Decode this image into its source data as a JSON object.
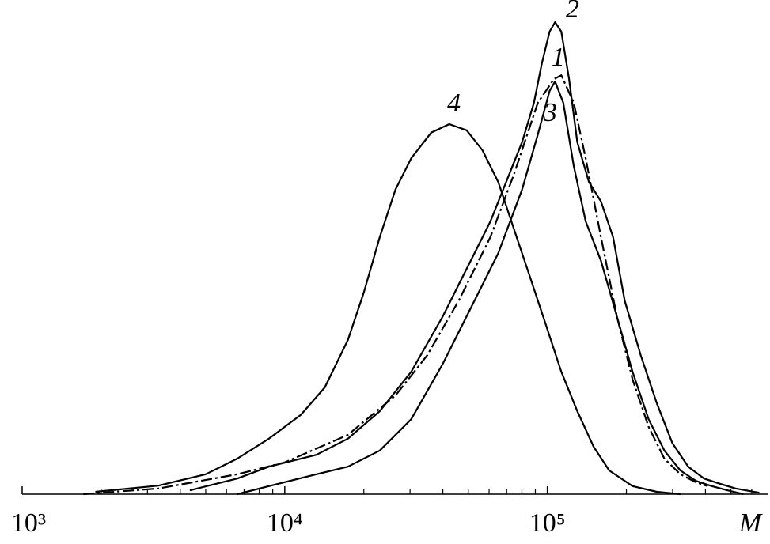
{
  "chart_data": {
    "type": "line",
    "x_label": "M",
    "xscale": "log",
    "xlim": [
      1000,
      690000
    ],
    "ylim": [
      0,
      100
    ],
    "xticks": [
      {
        "value": 1000,
        "label": "10³"
      },
      {
        "value": 10000,
        "label": "10⁴"
      },
      {
        "value": 100000,
        "label": "10⁵"
      }
    ],
    "xminorticks": [
      2000,
      3000,
      4000,
      5000,
      6000,
      7000,
      8000,
      9000,
      20000,
      30000,
      40000,
      50000,
      60000,
      70000,
      80000,
      90000,
      200000,
      300000,
      400000,
      500000,
      600000
    ],
    "series": [
      {
        "name": "1",
        "color": "#000000",
        "linestyle": "dashdot",
        "x": [
          1710,
          3300,
          6600,
          10000,
          17400,
          26400,
          34800,
          46000,
          60700,
          74700,
          92000,
          106000,
          113000,
          126000,
          140000,
          160000,
          184000,
          211000,
          243000,
          279000,
          321000,
          368000,
          408000
        ],
        "values": [
          0,
          1.2,
          4.2,
          6.7,
          12.5,
          20.8,
          29.2,
          40.8,
          54.2,
          67.5,
          82.5,
          87.5,
          88.3,
          82.5,
          70.8,
          54.2,
          37.5,
          24.2,
          14.2,
          7.5,
          4.2,
          2.5,
          1.7
        ]
      },
      {
        "name": "2",
        "color": "#000000",
        "linestyle": "solid",
        "x": [
          4350,
          6600,
          8700,
          13200,
          17400,
          23000,
          30300,
          40000,
          46000,
          52800,
          60700,
          69700,
          80100,
          88900,
          95300,
          102000,
          107000,
          113000,
          121000,
          130000,
          144000,
          160000,
          178000,
          197000,
          227000,
          261000,
          299000,
          344000,
          395000,
          454000,
          521000,
          641000
        ],
        "values": [
          0.8,
          3.3,
          5.8,
          8.3,
          11.7,
          17.5,
          25.8,
          37.5,
          44.2,
          50.8,
          57.5,
          65.8,
          74.2,
          82.5,
          90.8,
          97.5,
          99.5,
          97.5,
          87.5,
          74.2,
          65.8,
          61.7,
          54.2,
          40.8,
          29.2,
          19.2,
          10.8,
          5.8,
          3.3,
          2.2,
          1.2,
          0.3
        ]
      },
      {
        "name": "3",
        "color": "#000000",
        "linestyle": "solid",
        "x": [
          6600,
          8700,
          13200,
          17400,
          23000,
          30300,
          40000,
          52800,
          65000,
          80100,
          92000,
          102000,
          107000,
          115000,
          126000,
          140000,
          160000,
          184000,
          211000,
          243000,
          279000,
          321000,
          368000,
          423000,
          486000,
          558000
        ],
        "values": [
          0,
          1.7,
          4.2,
          5.8,
          9.2,
          15.8,
          27.5,
          40.8,
          50.8,
          64.2,
          75.8,
          85,
          87,
          82.5,
          69.2,
          57.5,
          49.2,
          37.5,
          25.8,
          15.8,
          9.2,
          5,
          2.8,
          1.7,
          0.8,
          0
        ]
      },
      {
        "name": "4",
        "color": "#000000",
        "linestyle": "solid",
        "x": [
          1900,
          3300,
          5000,
          6600,
          8700,
          11500,
          14200,
          17400,
          20000,
          23000,
          26400,
          30300,
          36100,
          42300,
          49300,
          56600,
          65000,
          74700,
          85900,
          98600,
          113000,
          130000,
          150000,
          172000,
          211000,
          261000,
          321000
        ],
        "values": [
          0.5,
          1.8,
          4.2,
          7.5,
          11.7,
          16.7,
          22.5,
          32.5,
          42.5,
          54.2,
          64.2,
          70.8,
          76.2,
          78,
          76.7,
          72.5,
          65.8,
          55.8,
          45.8,
          35.8,
          25.8,
          17.5,
          10,
          5,
          1.7,
          0.5,
          0
        ]
      }
    ]
  }
}
